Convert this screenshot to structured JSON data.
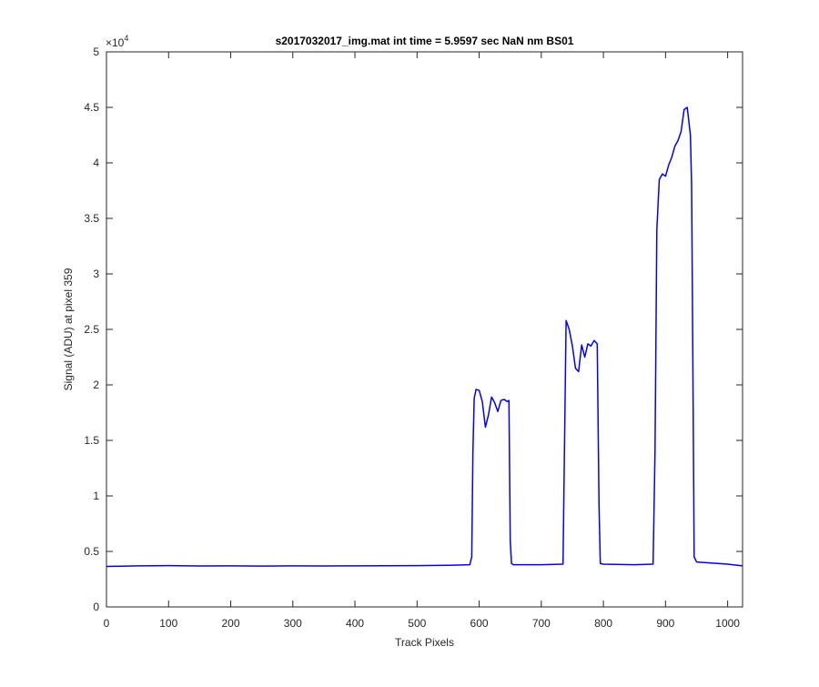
{
  "chart_data": {
    "type": "line",
    "title": "s2017032017_img.mat int time = 5.9597 sec  NaN nm BS01",
    "xlabel": "Track Pixels",
    "ylabel": "Signal (ADU) at pixel 359",
    "xlim": [
      0,
      1024
    ],
    "ylim": [
      0,
      50000
    ],
    "y_exponent_label": "×10",
    "y_exponent_power": "4",
    "x_ticks": [
      0,
      100,
      200,
      300,
      400,
      500,
      600,
      700,
      800,
      900,
      1000
    ],
    "x_tick_labels": [
      "0",
      "100",
      "200",
      "300",
      "400",
      "500",
      "600",
      "700",
      "800",
      "900",
      "1000"
    ],
    "y_ticks": [
      0,
      5000,
      10000,
      15000,
      20000,
      25000,
      30000,
      35000,
      40000,
      45000,
      50000
    ],
    "y_tick_labels": [
      "0",
      "0.5",
      "1",
      "1.5",
      "2",
      "2.5",
      "3",
      "3.5",
      "4",
      "4.5",
      "5"
    ],
    "grid": false,
    "series": [
      {
        "color": "#0000ff",
        "x": [
          0,
          50,
          100,
          150,
          200,
          250,
          300,
          350,
          400,
          450,
          500,
          550,
          585,
          588,
          590,
          592,
          595,
          600,
          605,
          610,
          615,
          620,
          625,
          630,
          635,
          640,
          645,
          648,
          650,
          652,
          655,
          700,
          735,
          737,
          740,
          745,
          750,
          755,
          760,
          765,
          770,
          775,
          780,
          785,
          790,
          793,
          795,
          800,
          850,
          880,
          883,
          886,
          890,
          895,
          900,
          905,
          910,
          915,
          920,
          925,
          930,
          935,
          940,
          942,
          944,
          946,
          950,
          1000,
          1024
        ],
        "y": [
          3650,
          3700,
          3720,
          3690,
          3700,
          3680,
          3700,
          3690,
          3700,
          3710,
          3720,
          3750,
          3800,
          4500,
          14000,
          18800,
          19600,
          19500,
          18500,
          16200,
          17300,
          18900,
          18400,
          17600,
          18600,
          18700,
          18500,
          18600,
          6000,
          3900,
          3800,
          3800,
          3850,
          13000,
          25800,
          25000,
          23500,
          21500,
          21200,
          23600,
          22500,
          23700,
          23500,
          24000,
          23700,
          9000,
          3900,
          3850,
          3800,
          3850,
          14000,
          34000,
          38500,
          39000,
          38800,
          39800,
          40500,
          41500,
          42000,
          42800,
          44800,
          45000,
          42500,
          38000,
          22000,
          4500,
          4050,
          3850,
          3700
        ]
      }
    ]
  }
}
